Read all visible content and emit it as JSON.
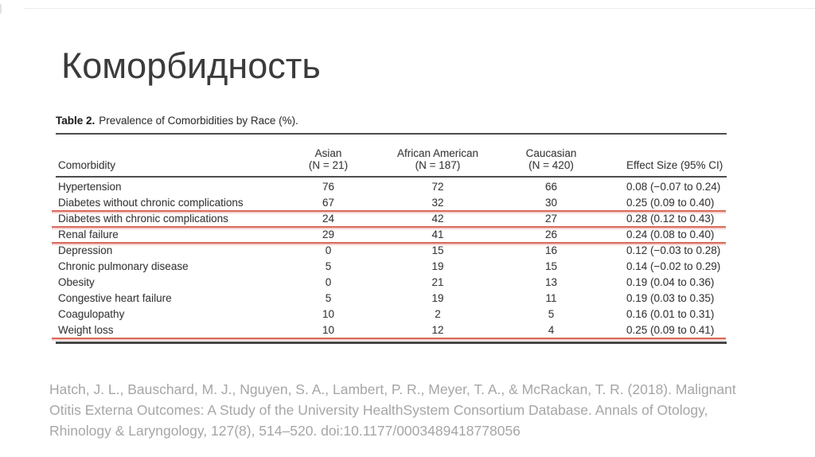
{
  "slide": {
    "title": "Коморбидность"
  },
  "table": {
    "caption_label": "Table 2.",
    "caption_text": "Prevalence of Comorbidities by Race (%).",
    "annotation_color": "#d9695c",
    "headers": {
      "comorbidity": "Comorbidity",
      "asian": {
        "name": "Asian",
        "n": "(N = 21)"
      },
      "african_american": {
        "name": "African American",
        "n": "(N = 187)"
      },
      "caucasian": {
        "name": "Caucasian",
        "n": "(N = 420)"
      },
      "effect_size": "Effect Size (95% CI)"
    },
    "rows": [
      {
        "comorbidity": "Hypertension",
        "asian": "76",
        "african_american": "72",
        "caucasian": "66",
        "effect_size": "0.08 (−0.07 to 0.24)",
        "red_underline": false
      },
      {
        "comorbidity": "Diabetes without chronic complications",
        "asian": "67",
        "african_american": "32",
        "caucasian": "30",
        "effect_size": "0.25 (0.09 to 0.40)",
        "red_underline": true
      },
      {
        "comorbidity": "Diabetes with chronic complications",
        "asian": "24",
        "african_american": "42",
        "caucasian": "27",
        "effect_size": "0.28 (0.12 to 0.43)",
        "red_underline": true
      },
      {
        "comorbidity": "Renal failure",
        "asian": "29",
        "african_american": "41",
        "caucasian": "26",
        "effect_size": "0.24 (0.08 to 0.40)",
        "red_underline": true
      },
      {
        "comorbidity": "Depression",
        "asian": "0",
        "african_american": "15",
        "caucasian": "16",
        "effect_size": "0.12 (−0.03 to 0.28)",
        "red_underline": false
      },
      {
        "comorbidity": "Chronic pulmonary disease",
        "asian": "5",
        "african_american": "19",
        "caucasian": "15",
        "effect_size": "0.14 (−0.02 to 0.29)",
        "red_underline": false
      },
      {
        "comorbidity": "Obesity",
        "asian": "0",
        "african_american": "21",
        "caucasian": "13",
        "effect_size": "0.19 (0.04 to 0.36)",
        "red_underline": false
      },
      {
        "comorbidity": "Congestive heart failure",
        "asian": "5",
        "african_american": "19",
        "caucasian": "11",
        "effect_size": "0.19 (0.03 to 0.35)",
        "red_underline": false
      },
      {
        "comorbidity": "Coagulopathy",
        "asian": "10",
        "african_american": "2",
        "caucasian": "5",
        "effect_size": "0.16 (0.01 to 0.31)",
        "red_underline": false
      },
      {
        "comorbidity": "Weight loss",
        "asian": "10",
        "african_american": "12",
        "caucasian": "4",
        "effect_size": "0.25 (0.09 to 0.41)",
        "red_underline": true
      }
    ]
  },
  "citation": {
    "lines": [
      "Hatch, J. L., Bauschard, M. J., Nguyen, S. A., Lambert, P. R., Meyer, T. A., & McRackan, T. R. (2018). Malignant",
      "Otitis Externa Outcomes: A Study of the University HealthSystem Consortium Database. Annals of Otology,",
      "Rhinology & Laryngology, 127(8), 514–520. doi:10.1177/0003489418778056"
    ]
  }
}
